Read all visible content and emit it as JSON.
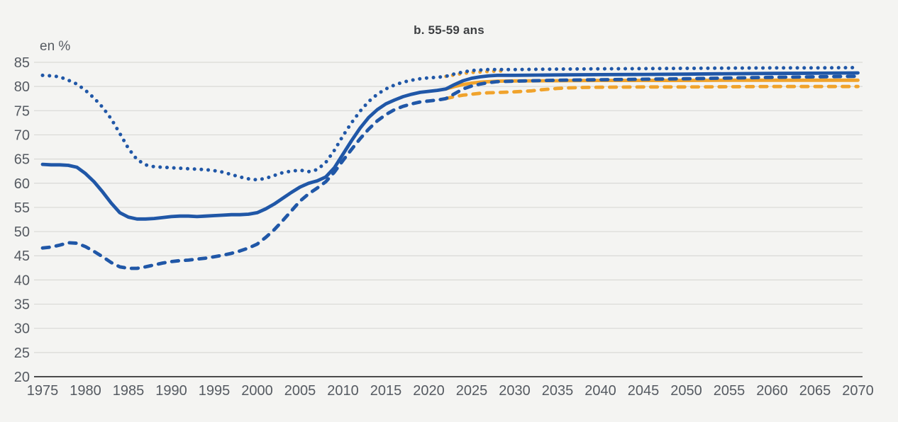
{
  "title": "b. 55-59 ans",
  "chart_data": {
    "type": "line",
    "title": "b. 55-59 ans",
    "unit_label": "en %",
    "xlabel": "",
    "ylabel": "en %",
    "x_range": [
      1975,
      2070
    ],
    "y_range": [
      20,
      85
    ],
    "x_ticks": [
      1975,
      1980,
      1985,
      1990,
      1995,
      2000,
      2005,
      2010,
      2015,
      2020,
      2025,
      2030,
      2035,
      2040,
      2045,
      2050,
      2055,
      2060,
      2065,
      2070
    ],
    "y_ticks": [
      20,
      25,
      30,
      35,
      40,
      45,
      50,
      55,
      60,
      65,
      70,
      75,
      80,
      85
    ],
    "grid": "horizontal",
    "legend": "none",
    "colors": {
      "blue": "#2057A7",
      "orange": "#F0A32C"
    },
    "series": [
      {
        "name": "orange-dotted",
        "color": "#F0A32C",
        "style": "dotted",
        "points": [
          [
            2022,
            82.1
          ],
          [
            2023,
            82.4
          ],
          [
            2024,
            82.7
          ],
          [
            2025,
            82.9
          ],
          [
            2026,
            83.0
          ],
          [
            2027,
            83.1
          ],
          [
            2028,
            83.2
          ],
          [
            2029,
            83.2
          ]
        ]
      },
      {
        "name": "orange-solid",
        "color": "#F0A32C",
        "style": "solid",
        "points": [
          [
            2022,
            79.5
          ],
          [
            2023,
            80.0
          ],
          [
            2024,
            80.4
          ],
          [
            2025,
            80.7
          ],
          [
            2026,
            80.9
          ],
          [
            2027,
            81.0
          ],
          [
            2028,
            81.1
          ],
          [
            2030,
            81.15
          ],
          [
            2035,
            81.2
          ],
          [
            2040,
            81.25
          ],
          [
            2045,
            81.25
          ],
          [
            2050,
            81.25
          ],
          [
            2055,
            81.3
          ],
          [
            2060,
            81.3
          ],
          [
            2065,
            81.3
          ],
          [
            2070,
            81.3
          ]
        ]
      },
      {
        "name": "orange-dashed",
        "color": "#F0A32C",
        "style": "dashed",
        "points": [
          [
            2022,
            77.5
          ],
          [
            2023,
            77.9
          ],
          [
            2024,
            78.2
          ],
          [
            2025,
            78.4
          ],
          [
            2026,
            78.6
          ],
          [
            2027,
            78.7
          ],
          [
            2028,
            78.75
          ],
          [
            2030,
            78.9
          ],
          [
            2031,
            79.0
          ],
          [
            2032,
            79.1
          ],
          [
            2033,
            79.3
          ],
          [
            2034,
            79.45
          ],
          [
            2035,
            79.6
          ],
          [
            2036,
            79.7
          ],
          [
            2037,
            79.75
          ],
          [
            2038,
            79.8
          ],
          [
            2040,
            79.85
          ],
          [
            2045,
            79.9
          ],
          [
            2050,
            79.9
          ],
          [
            2055,
            79.95
          ],
          [
            2060,
            80.0
          ],
          [
            2065,
            80.0
          ],
          [
            2070,
            80.0
          ]
        ]
      },
      {
        "name": "blue-dashed",
        "color": "#2057A7",
        "style": "dashed",
        "points": [
          [
            1975,
            46.6
          ],
          [
            1976,
            46.8
          ],
          [
            1977,
            47.2
          ],
          [
            1978,
            47.7
          ],
          [
            1979,
            47.6
          ],
          [
            1980,
            46.9
          ],
          [
            1981,
            45.9
          ],
          [
            1982,
            44.8
          ],
          [
            1983,
            43.6
          ],
          [
            1984,
            42.7
          ],
          [
            1985,
            42.4
          ],
          [
            1986,
            42.4
          ],
          [
            1987,
            42.7
          ],
          [
            1988,
            43.1
          ],
          [
            1989,
            43.5
          ],
          [
            1990,
            43.8
          ],
          [
            1991,
            44.0
          ],
          [
            1992,
            44.1
          ],
          [
            1993,
            44.3
          ],
          [
            1994,
            44.5
          ],
          [
            1995,
            44.8
          ],
          [
            1996,
            45.1
          ],
          [
            1997,
            45.5
          ],
          [
            1998,
            46.0
          ],
          [
            1999,
            46.6
          ],
          [
            2000,
            47.4
          ],
          [
            2001,
            48.8
          ],
          [
            2002,
            50.4
          ],
          [
            2003,
            52.3
          ],
          [
            2004,
            54.3
          ],
          [
            2005,
            56.3
          ],
          [
            2006,
            57.8
          ],
          [
            2007,
            59.0
          ],
          [
            2008,
            60.3
          ],
          [
            2009,
            62.3
          ],
          [
            2010,
            64.7
          ],
          [
            2011,
            67.0
          ],
          [
            2012,
            69.2
          ],
          [
            2013,
            71.2
          ],
          [
            2014,
            72.9
          ],
          [
            2015,
            74.2
          ],
          [
            2016,
            75.2
          ],
          [
            2017,
            75.9
          ],
          [
            2018,
            76.4
          ],
          [
            2019,
            76.8
          ],
          [
            2020,
            77.0
          ],
          [
            2021,
            77.2
          ],
          [
            2022,
            77.5
          ],
          [
            2023,
            78.5
          ],
          [
            2024,
            79.5
          ],
          [
            2025,
            80.1
          ],
          [
            2026,
            80.5
          ],
          [
            2027,
            80.8
          ],
          [
            2028,
            81.0
          ],
          [
            2030,
            81.1
          ],
          [
            2035,
            81.3
          ],
          [
            2040,
            81.4
          ],
          [
            2045,
            81.5
          ],
          [
            2050,
            81.6
          ],
          [
            2055,
            81.75
          ],
          [
            2060,
            81.9
          ],
          [
            2065,
            82.0
          ],
          [
            2070,
            82.1
          ]
        ]
      },
      {
        "name": "blue-solid",
        "color": "#2057A7",
        "style": "solid",
        "points": [
          [
            1975,
            63.9
          ],
          [
            1976,
            63.8
          ],
          [
            1977,
            63.8
          ],
          [
            1978,
            63.7
          ],
          [
            1979,
            63.3
          ],
          [
            1980,
            62.0
          ],
          [
            1981,
            60.3
          ],
          [
            1982,
            58.2
          ],
          [
            1983,
            55.9
          ],
          [
            1984,
            53.9
          ],
          [
            1985,
            53.0
          ],
          [
            1986,
            52.6
          ],
          [
            1987,
            52.6
          ],
          [
            1988,
            52.7
          ],
          [
            1989,
            52.9
          ],
          [
            1990,
            53.1
          ],
          [
            1991,
            53.2
          ],
          [
            1992,
            53.2
          ],
          [
            1993,
            53.1
          ],
          [
            1994,
            53.2
          ],
          [
            1995,
            53.3
          ],
          [
            1996,
            53.4
          ],
          [
            1997,
            53.5
          ],
          [
            1998,
            53.5
          ],
          [
            1999,
            53.6
          ],
          [
            2000,
            53.9
          ],
          [
            2001,
            54.7
          ],
          [
            2002,
            55.7
          ],
          [
            2003,
            56.9
          ],
          [
            2004,
            58.1
          ],
          [
            2005,
            59.2
          ],
          [
            2006,
            60.0
          ],
          [
            2007,
            60.5
          ],
          [
            2008,
            61.3
          ],
          [
            2009,
            63.2
          ],
          [
            2010,
            66.0
          ],
          [
            2011,
            68.8
          ],
          [
            2012,
            71.4
          ],
          [
            2013,
            73.6
          ],
          [
            2014,
            75.2
          ],
          [
            2015,
            76.4
          ],
          [
            2016,
            77.2
          ],
          [
            2017,
            77.9
          ],
          [
            2018,
            78.4
          ],
          [
            2019,
            78.8
          ],
          [
            2020,
            79.0
          ],
          [
            2021,
            79.2
          ],
          [
            2022,
            79.5
          ],
          [
            2023,
            80.4
          ],
          [
            2024,
            81.2
          ],
          [
            2025,
            81.7
          ],
          [
            2026,
            82.0
          ],
          [
            2027,
            82.2
          ],
          [
            2028,
            82.3
          ],
          [
            2030,
            82.3
          ],
          [
            2035,
            82.4
          ],
          [
            2040,
            82.45
          ],
          [
            2045,
            82.5
          ],
          [
            2050,
            82.55
          ],
          [
            2055,
            82.65
          ],
          [
            2060,
            82.7
          ],
          [
            2065,
            82.75
          ],
          [
            2070,
            82.8
          ]
        ]
      },
      {
        "name": "blue-dotted",
        "color": "#2057A7",
        "style": "dotted",
        "points": [
          [
            1975,
            82.3
          ],
          [
            1976,
            82.2
          ],
          [
            1977,
            82.0
          ],
          [
            1978,
            81.3
          ],
          [
            1979,
            80.5
          ],
          [
            1980,
            79.2
          ],
          [
            1981,
            77.6
          ],
          [
            1982,
            75.7
          ],
          [
            1983,
            73.3
          ],
          [
            1984,
            70.3
          ],
          [
            1985,
            67.2
          ],
          [
            1986,
            64.9
          ],
          [
            1987,
            63.8
          ],
          [
            1988,
            63.4
          ],
          [
            1989,
            63.3
          ],
          [
            1990,
            63.2
          ],
          [
            1992,
            63.0
          ],
          [
            1994,
            62.8
          ],
          [
            1995,
            62.6
          ],
          [
            1996,
            62.3
          ],
          [
            1997,
            61.8
          ],
          [
            1998,
            61.3
          ],
          [
            1999,
            60.9
          ],
          [
            2000,
            60.7
          ],
          [
            2001,
            61.0
          ],
          [
            2002,
            61.6
          ],
          [
            2003,
            62.2
          ],
          [
            2004,
            62.5
          ],
          [
            2005,
            62.7
          ],
          [
            2006,
            62.4
          ],
          [
            2007,
            62.8
          ],
          [
            2008,
            64.3
          ],
          [
            2009,
            66.8
          ],
          [
            2010,
            69.8
          ],
          [
            2011,
            72.5
          ],
          [
            2012,
            74.9
          ],
          [
            2013,
            76.9
          ],
          [
            2014,
            78.4
          ],
          [
            2015,
            79.5
          ],
          [
            2016,
            80.3
          ],
          [
            2017,
            80.9
          ],
          [
            2018,
            81.3
          ],
          [
            2019,
            81.6
          ],
          [
            2020,
            81.8
          ],
          [
            2021,
            81.9
          ],
          [
            2022,
            82.1
          ],
          [
            2023,
            82.6
          ],
          [
            2024,
            83.0
          ],
          [
            2025,
            83.3
          ],
          [
            2026,
            83.4
          ],
          [
            2027,
            83.5
          ],
          [
            2030,
            83.5
          ],
          [
            2035,
            83.6
          ],
          [
            2040,
            83.65
          ],
          [
            2045,
            83.7
          ],
          [
            2050,
            83.75
          ],
          [
            2055,
            83.8
          ],
          [
            2060,
            83.85
          ],
          [
            2065,
            83.85
          ],
          [
            2070,
            83.9
          ]
        ]
      }
    ]
  }
}
